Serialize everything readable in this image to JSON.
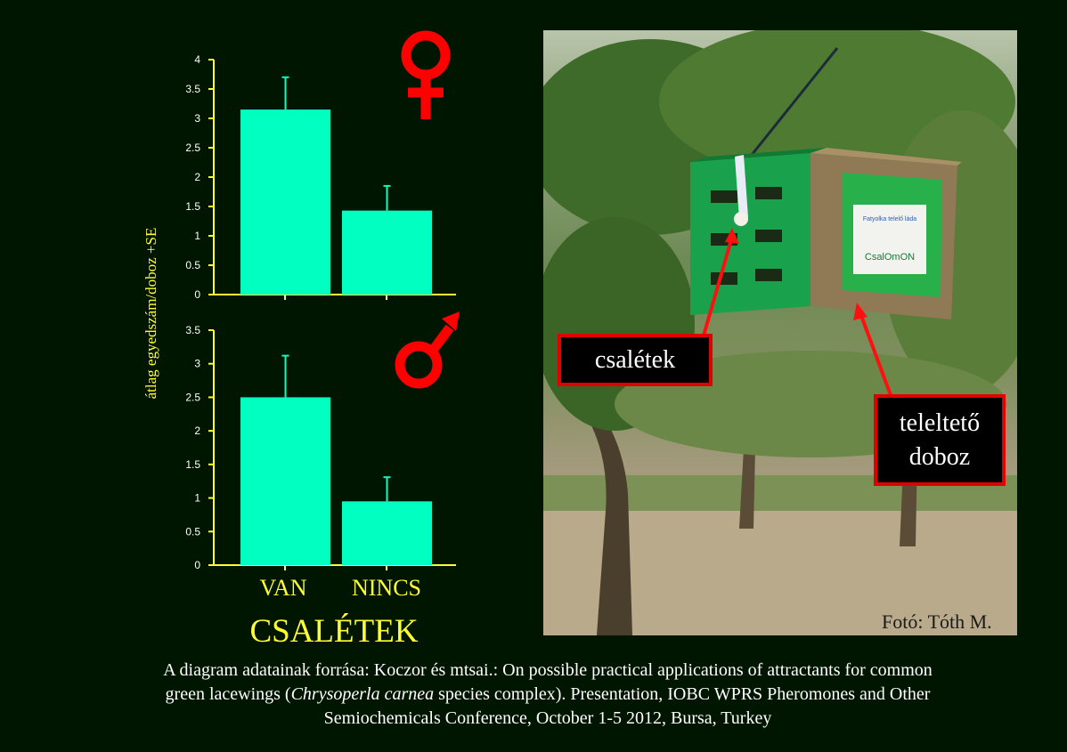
{
  "chart_data": [
    {
      "type": "bar",
      "categories": [
        "VAN",
        "NINCS"
      ],
      "values": [
        3.15,
        1.43
      ],
      "errors": [
        0.55,
        0.42
      ],
      "ylim": [
        0,
        4
      ],
      "yticks": [
        "0",
        "0.5",
        "1",
        "1.5",
        "2",
        "2.5",
        "3",
        "3.5",
        "4"
      ],
      "symbol": "♀",
      "color": "#00ffc0"
    },
    {
      "type": "bar",
      "categories": [
        "VAN",
        "NINCS"
      ],
      "values": [
        2.5,
        0.95
      ],
      "errors": [
        0.62,
        0.36
      ],
      "ylim": [
        0,
        3.5
      ],
      "yticks": [
        "0",
        "0.5",
        "1",
        "1.5",
        "2",
        "2.5",
        "3",
        "3.5"
      ],
      "symbol": "♂",
      "color": "#00ffc0"
    }
  ],
  "shared": {
    "ylabel": "átlag egyedszám/doboz +SE",
    "xlabel": "CSALÉTEK",
    "categories": [
      "VAN",
      "NINCS"
    ]
  },
  "colors": {
    "background": "#001600",
    "axis": "#ffff33",
    "bars": "#00ffc0",
    "symbols": "#ff0000",
    "callout_border": "#e10000"
  },
  "photo": {
    "box_labels": [
      "Fatyolka telelő láda",
      "CsalOmON"
    ],
    "callout_bait": "csalétek",
    "callout_box_line1": "teleltető",
    "callout_box_line2": "doboz",
    "credit": "Fotó: Tóth M."
  },
  "caption": {
    "line1": "A diagram adatainak forrása: Koczor és mtsai.: On possible practical applications of attractants for common",
    "line2_a": "green lacewings (",
    "line2_italic": "Chrysoperla carnea",
    "line2_b": " species complex). Presentation, IOBC WPRS Pheromones and Other",
    "line3": "Semiochemicals Conference, October 1-5 2012, Bursa, Turkey"
  }
}
